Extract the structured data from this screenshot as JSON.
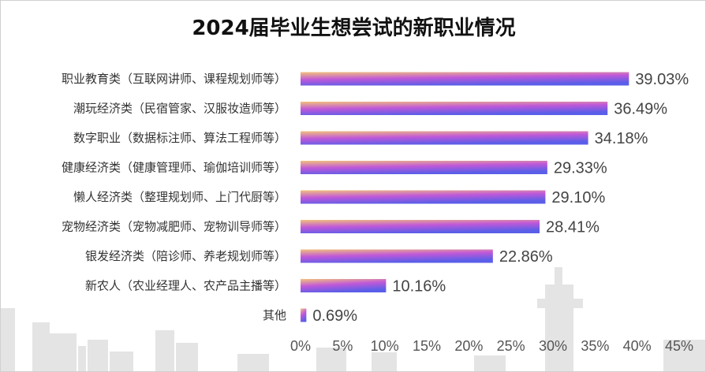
{
  "chart_data": {
    "type": "bar",
    "orientation": "horizontal",
    "title": "2024届毕业生想尝试的新职业情况",
    "categories": [
      "职业教育类（互联网讲师、课程规划师等）",
      "潮玩经济类（民宿管家、汉服妆造师等）",
      "数字职业（数据标注师、算法工程师等）",
      "健康经济类（健康管理师、瑜伽培训师等）",
      "懒人经济类（整理规划师、上门代厨等）",
      "宠物经济类（宠物减肥师、宠物训导师等）",
      "银发经济类（陪诊师、养老规划师等）",
      "新农人（农业经理人、农产品主播等）",
      "其他"
    ],
    "values": [
      39.03,
      36.49,
      34.18,
      29.33,
      29.1,
      28.41,
      22.86,
      10.16,
      0.69
    ],
    "value_labels": [
      "39.03%",
      "36.49%",
      "34.18%",
      "29.33%",
      "29.10%",
      "28.41%",
      "22.86%",
      "10.16%",
      "0.69%"
    ],
    "x_ticks": [
      0,
      5,
      10,
      15,
      20,
      25,
      30,
      35,
      40,
      45
    ],
    "x_tick_labels": [
      "0%",
      "5%",
      "10%",
      "15%",
      "20%",
      "25%",
      "30%",
      "35%",
      "40%",
      "45%"
    ],
    "xlim": [
      0,
      45
    ],
    "unit": "%",
    "grid": false,
    "legend": "none",
    "bar_gradient": [
      "#f2c27a",
      "#c158d8",
      "#5a5ee8"
    ]
  }
}
